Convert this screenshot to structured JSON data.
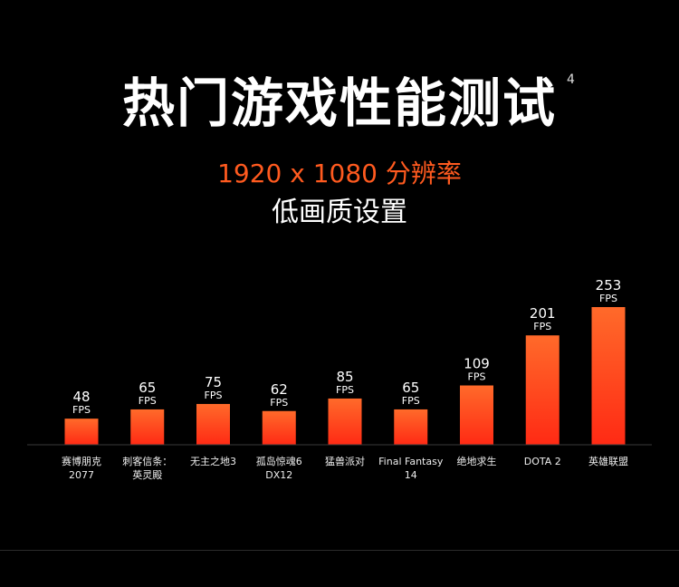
{
  "header": {
    "title": "热门游戏性能测试",
    "footnote_mark": "4",
    "resolution": "1920 x 1080 分辨率",
    "quality": "低画质设置"
  },
  "colors": {
    "background": "#000000",
    "accent": "#ff5a1f",
    "bar_top": "#ff6a2a",
    "bar_bottom": "#ff2a14"
  },
  "chart_data": {
    "type": "bar",
    "categories": [
      [
        "赛博朋克",
        "2077"
      ],
      [
        "刺客信条：",
        "英灵殿"
      ],
      [
        "无主之地3"
      ],
      [
        "孤岛惊魂6",
        "DX12"
      ],
      [
        "猛兽派对"
      ],
      [
        "Final Fantasy",
        "14"
      ],
      [
        "绝地求生"
      ],
      [
        "DOTA 2"
      ],
      [
        "英雄联盟"
      ]
    ],
    "values": [
      48,
      65,
      75,
      62,
      85,
      65,
      109,
      201,
      253
    ],
    "unit": "FPS",
    "ylim": [
      0,
      253
    ]
  }
}
